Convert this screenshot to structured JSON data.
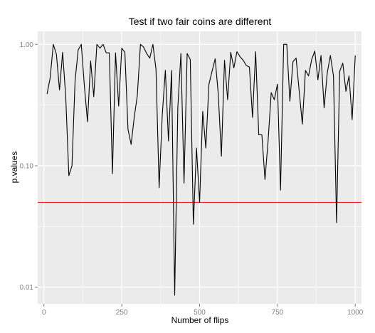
{
  "chart_data": {
    "type": "line",
    "title": "Test if two fair coins are different",
    "xlabel": "Number of flips",
    "ylabel": "p.values",
    "x_scale": "linear",
    "y_scale": "log10",
    "xlim": [
      -20,
      1020
    ],
    "ylim": [
      0.0073,
      1.28
    ],
    "x_ticks": [
      0,
      250,
      500,
      750,
      1000
    ],
    "x_tick_labels": [
      "0",
      "250",
      "500",
      "750",
      "1000"
    ],
    "y_ticks": [
      0.01,
      0.1,
      1.0
    ],
    "y_tick_labels": [
      "0.01",
      "0.10",
      "1.00"
    ],
    "grid": true,
    "reference_line": {
      "y": 0.05,
      "color": "#ff0000"
    },
    "background": "#ebebeb",
    "gridline_color": "#ffffff",
    "series": [
      {
        "color": "#000000",
        "x": [
          10,
          20,
          30,
          40,
          50,
          60,
          70,
          80,
          90,
          100,
          110,
          120,
          130,
          140,
          150,
          160,
          170,
          180,
          190,
          200,
          210,
          220,
          230,
          240,
          250,
          260,
          270,
          280,
          290,
          300,
          310,
          320,
          330,
          340,
          350,
          360,
          370,
          380,
          390,
          400,
          410,
          420,
          430,
          440,
          450,
          460,
          470,
          480,
          490,
          500,
          510,
          520,
          530,
          540,
          550,
          560,
          570,
          580,
          590,
          600,
          610,
          620,
          630,
          640,
          650,
          660,
          670,
          680,
          690,
          700,
          710,
          720,
          730,
          740,
          750,
          760,
          770,
          780,
          790,
          800,
          810,
          820,
          830,
          840,
          850,
          860,
          870,
          880,
          890,
          900,
          910,
          920,
          930,
          940,
          950,
          960,
          970,
          980,
          990,
          1000
        ],
        "y": [
          0.39,
          0.53,
          1.0,
          0.83,
          0.42,
          0.86,
          0.37,
          0.083,
          0.1,
          0.5,
          0.9,
          1.0,
          0.45,
          0.23,
          0.73,
          0.37,
          1.0,
          0.93,
          1.0,
          0.85,
          0.85,
          0.086,
          0.85,
          0.31,
          0.93,
          0.86,
          0.2,
          0.15,
          0.25,
          0.38,
          1.0,
          0.95,
          0.84,
          0.77,
          1.0,
          0.62,
          0.066,
          0.26,
          0.61,
          0.16,
          0.61,
          0.0086,
          0.3,
          0.84,
          0.072,
          0.84,
          0.75,
          0.033,
          0.14,
          0.05,
          0.28,
          0.14,
          0.47,
          0.6,
          0.76,
          0.39,
          0.12,
          0.74,
          0.35,
          0.86,
          0.64,
          0.87,
          0.79,
          0.74,
          0.67,
          0.65,
          0.25,
          0.87,
          0.18,
          0.18,
          0.077,
          0.16,
          0.4,
          0.35,
          0.47,
          0.063,
          1.0,
          1.0,
          0.34,
          0.72,
          0.77,
          0.41,
          0.22,
          0.61,
          0.55,
          0.75,
          0.88,
          0.51,
          0.81,
          0.3,
          0.58,
          0.81,
          0.55,
          0.034,
          0.6,
          0.7,
          0.41,
          0.55,
          0.24,
          0.81
        ]
      }
    ]
  }
}
